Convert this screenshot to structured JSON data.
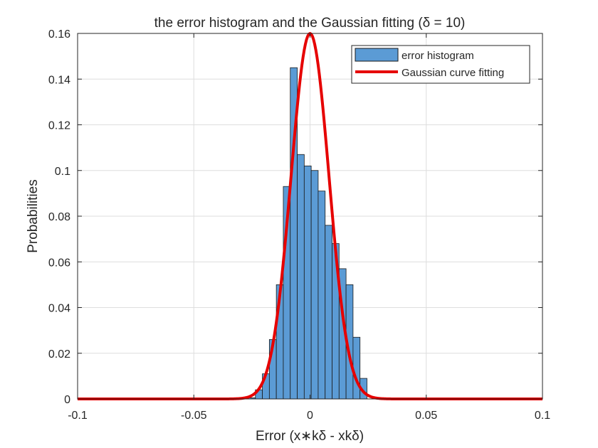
{
  "chart_data": {
    "type": "bar",
    "title": "the error histogram and the Gaussian fitting (δ = 10)",
    "xlabel": "Error (x∗kδ - xkδ)",
    "ylabel": "Probabilities",
    "xlim": [
      -0.1,
      0.1
    ],
    "ylim": [
      0,
      0.16
    ],
    "xticks": [
      -0.1,
      -0.05,
      0,
      0.05,
      0.1
    ],
    "xtick_labels": [
      "-0.1",
      "-0.05",
      "0",
      "0.05",
      "0.1"
    ],
    "yticks": [
      0,
      0.02,
      0.04,
      0.06,
      0.08,
      0.1,
      0.12,
      0.14,
      0.16
    ],
    "ytick_labels": [
      "0",
      "0.02",
      "0.04",
      "0.06",
      "0.08",
      "0.1",
      "0.12",
      "0.14",
      "0.16"
    ],
    "grid": true,
    "legend_position": "top-right",
    "histogram": {
      "name": "error histogram",
      "color": "#5B9BD5",
      "edge_color": "#1a1a1a",
      "bin_edges": [
        -0.0265,
        -0.0235,
        -0.0205,
        -0.0175,
        -0.0145,
        -0.0115,
        -0.0085,
        -0.0055,
        -0.0025,
        0.0005,
        0.0035,
        0.0065,
        0.0095,
        0.0125,
        0.0155,
        0.0185,
        0.0215,
        0.0245
      ],
      "values": [
        0.0005,
        0.004,
        0.011,
        0.026,
        0.05,
        0.093,
        0.145,
        0.107,
        0.102,
        0.1,
        0.091,
        0.076,
        0.068,
        0.057,
        0.05,
        0.027,
        0.009
      ]
    },
    "gaussian": {
      "name": "Gaussian curve fitting",
      "color": "#E60000",
      "mean": 0,
      "sigma": 0.0082,
      "peak": 0.16
    }
  }
}
